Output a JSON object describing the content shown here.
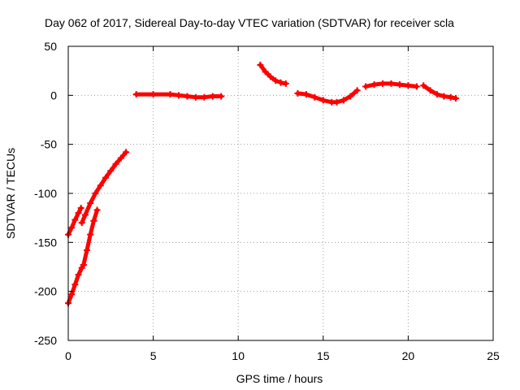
{
  "chart_data": {
    "type": "scatter",
    "title": "Day 062 of 2017, Sidereal Day-to-day VTEC variation (SDTVAR) for receiver scla",
    "xlabel": "GPS time / hours",
    "ylabel": "SDTVAR / TECUs",
    "xlim": [
      0,
      25
    ],
    "ylim": [
      -250,
      50
    ],
    "xticks": [
      0,
      5,
      10,
      15,
      20,
      25
    ],
    "yticks": [
      -250,
      -200,
      -150,
      -100,
      -50,
      0,
      50
    ],
    "grid": true,
    "legend": "none",
    "marker_color": "#ff0000",
    "series": [
      {
        "x": [
          0.0,
          0.2,
          0.4,
          0.6,
          0.75
        ],
        "y": [
          -142,
          -135,
          -127,
          -120,
          -115
        ]
      },
      {
        "x": [
          0.8,
          1.0,
          1.3,
          1.6,
          1.9,
          2.2,
          2.5,
          2.8,
          3.1,
          3.4
        ],
        "y": [
          -130,
          -122,
          -110,
          -100,
          -92,
          -84,
          -77,
          -70,
          -64,
          -58
        ]
      },
      {
        "x": [
          0.0,
          0.2,
          0.4,
          0.6,
          0.8,
          0.9
        ],
        "y": [
          -212,
          -203,
          -193,
          -183,
          -176,
          -173
        ]
      },
      {
        "x": [
          0.9,
          1.1,
          1.3,
          1.5,
          1.7
        ],
        "y": [
          -173,
          -158,
          -142,
          -128,
          -117
        ]
      },
      {
        "x": [
          4.0,
          5.0,
          6.0,
          6.5,
          7.0,
          7.5,
          8.0,
          8.5,
          9.0
        ],
        "y": [
          1,
          1,
          1,
          0,
          -1,
          -2,
          -2,
          -1,
          -1
        ]
      },
      {
        "x": [
          11.3,
          11.6,
          11.9,
          12.2,
          12.5,
          12.8
        ],
        "y": [
          31,
          24,
          19,
          15,
          13,
          12
        ]
      },
      {
        "x": [
          13.5,
          14.0,
          14.5,
          15.0,
          15.5,
          15.8,
          16.2,
          16.6,
          17.0
        ],
        "y": [
          2,
          1,
          -2,
          -5,
          -7,
          -7,
          -5,
          -1,
          5
        ]
      },
      {
        "x": [
          17.5,
          18.0,
          18.5,
          19.0,
          19.5,
          20.0,
          20.5
        ],
        "y": [
          9,
          11,
          12,
          12,
          11,
          10,
          9
        ]
      },
      {
        "x": [
          20.9,
          21.3,
          21.7,
          22.1,
          22.5,
          22.8
        ],
        "y": [
          10,
          5,
          1,
          -1,
          -2,
          -3
        ]
      }
    ]
  }
}
